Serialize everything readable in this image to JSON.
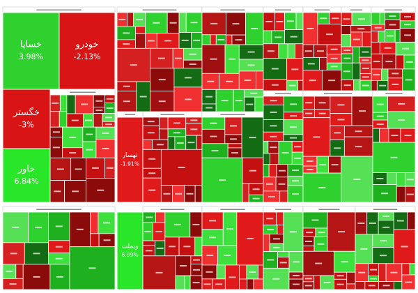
{
  "chart_data": {
    "type": "treemap",
    "items": [
      {
        "name": "خساپا",
        "value": 3.98,
        "value_label": "3.98%",
        "color": "#2fd12f"
      },
      {
        "name": "خودرو",
        "value": -2.13,
        "value_label": "-2.13%",
        "color": "#d81414"
      },
      {
        "name": "خگستر",
        "value": -3,
        "value_label": "-3%",
        "color": "#d81414"
      },
      {
        "name": "خاور",
        "value": 6.84,
        "value_label": "6.84%",
        "color": "#29e629"
      },
      {
        "name": "تهسار",
        "value": -1.91,
        "value_label": "-1.91%",
        "color": "#e01a1a"
      },
      {
        "name": "وبملت",
        "value": 6.99,
        "value_label": "6.99%",
        "color": "#29e629"
      }
    ]
  }
}
